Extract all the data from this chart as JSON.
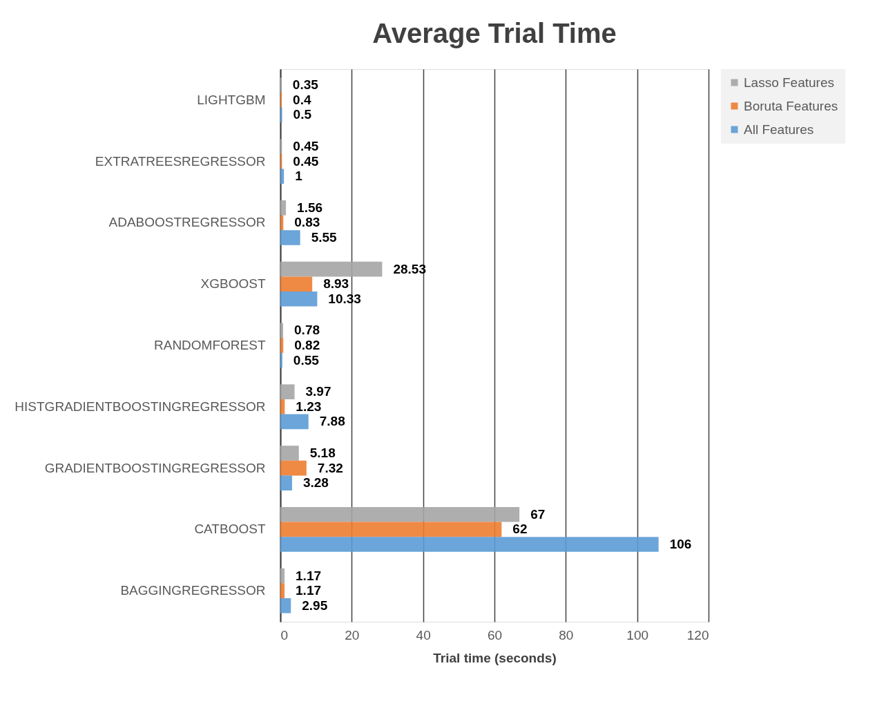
{
  "chart_data": {
    "type": "bar",
    "orientation": "horizontal",
    "title": "Average Trial Time",
    "xlabel": "Trial time  (seconds)",
    "categories": [
      "LIGHTGBM",
      "EXTRATREESREGRESSOR",
      "ADABOOSTREGRESSOR",
      "XGBOOST",
      "RANDOMFOREST",
      "HISTGRADIENTBOOSTINGREGRESSOR",
      "GRADIENTBOOSTINGREGRESSOR",
      "CATBOOST",
      "BAGGINGREGRESSOR"
    ],
    "series": [
      {
        "name": "Lasso Features",
        "color": "#a5a5a5",
        "values": [
          0.35,
          0.45,
          1.56,
          28.53,
          0.78,
          3.97,
          5.18,
          67,
          1.17
        ]
      },
      {
        "name": "Boruta Features",
        "color": "#ed7d31",
        "values": [
          0.4,
          0.45,
          0.83,
          8.93,
          0.82,
          1.23,
          7.32,
          62,
          1.17
        ]
      },
      {
        "name": "All Features",
        "color": "#5b9bd5",
        "values": [
          0.5,
          1,
          5.55,
          10.33,
          0.55,
          7.88,
          3.28,
          106,
          2.95
        ]
      }
    ],
    "xlim": [
      0,
      120
    ],
    "xticks": [
      0,
      20,
      40,
      60,
      80,
      100,
      120
    ],
    "grid": "x",
    "legend": "right",
    "data_labels": true
  }
}
